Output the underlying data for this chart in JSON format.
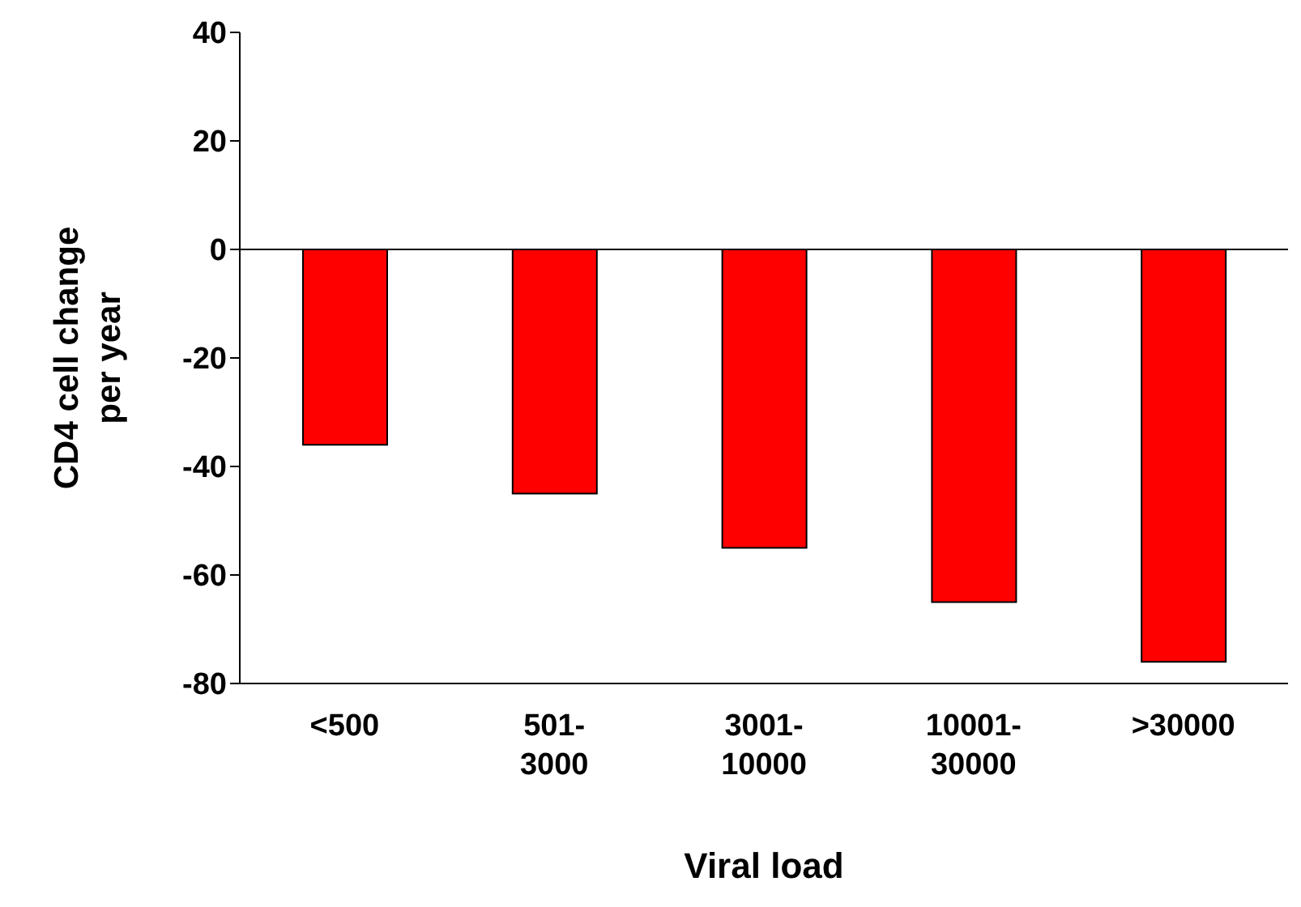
{
  "chart_data": {
    "type": "bar",
    "xlabel": "Viral load",
    "ylabel": "CD4 cell change per year",
    "categories": [
      "<500",
      "501-3000",
      "3001-10000",
      "10001-30000",
      ">30000"
    ],
    "values": [
      -36,
      -45,
      -55,
      -65,
      -76
    ],
    "color": "#ff0000",
    "ylim": [
      -80,
      40
    ],
    "yticks": [
      -80,
      -60,
      -40,
      -20,
      0,
      20,
      40
    ],
    "ref_lines": [
      {
        "axis": "y",
        "value": 0,
        "color": "#000000"
      }
    ]
  }
}
